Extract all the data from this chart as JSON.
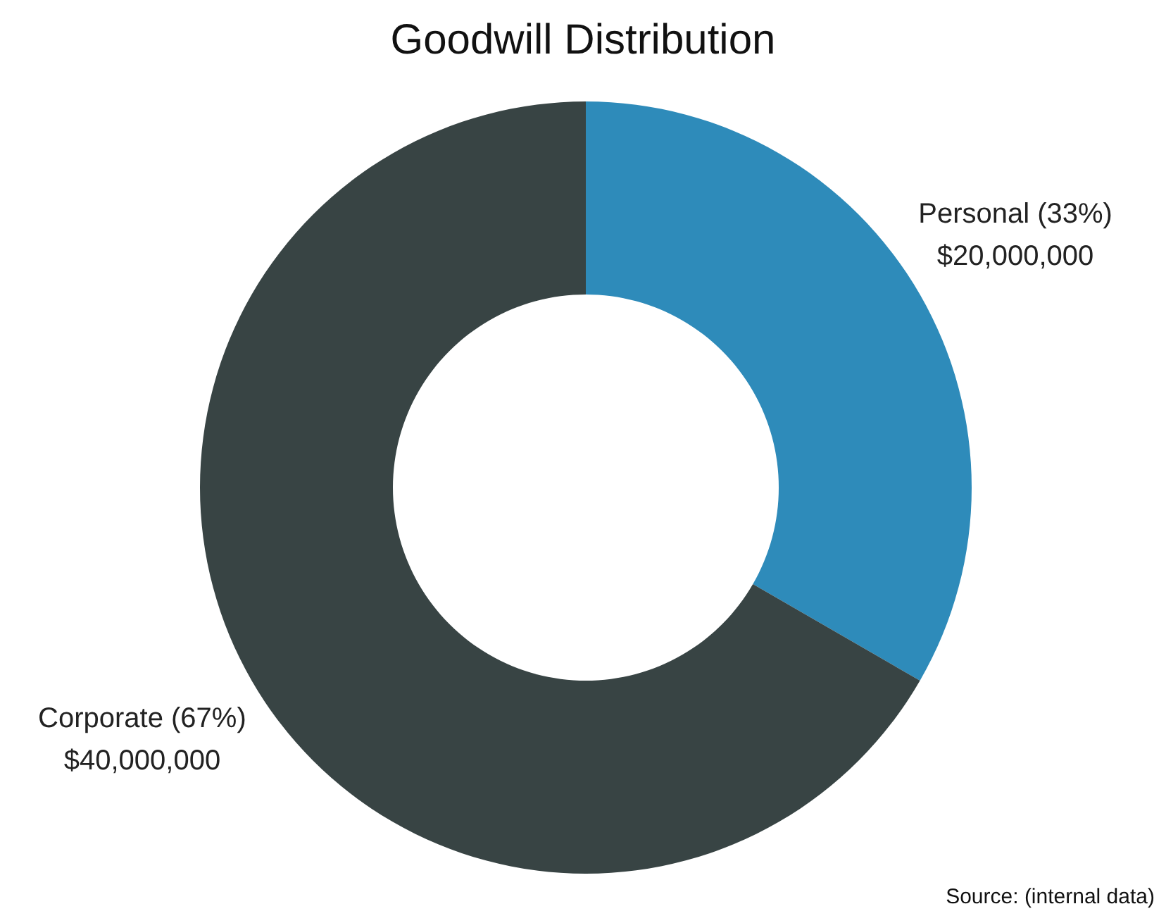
{
  "chart_data": {
    "type": "donut",
    "title": "Goodwill Distribution",
    "categories": [
      "Personal (33%)",
      "Corporate (67%)"
    ],
    "values": [
      20000000,
      40000000
    ],
    "value_labels": [
      "$20,000,000",
      "$40,000,000"
    ],
    "colors": [
      "#2e8bba",
      "#384444"
    ],
    "annotations": [
      "Source: (internal data)"
    ]
  }
}
